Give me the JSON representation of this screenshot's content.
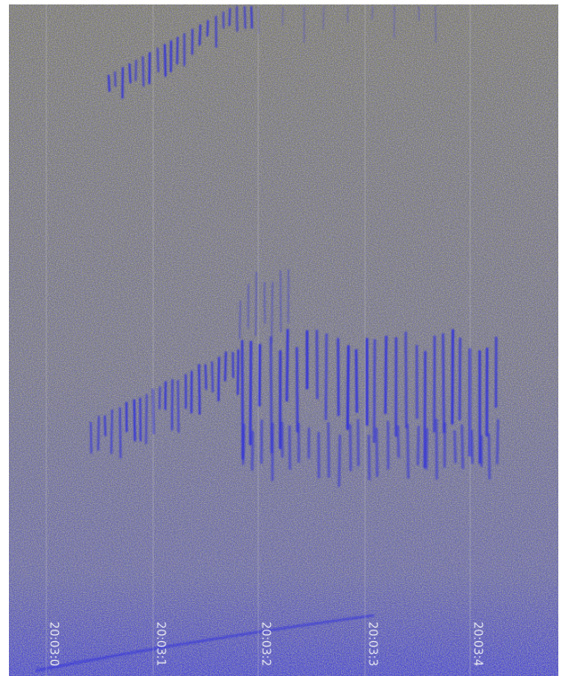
{
  "time_labels": [
    "20:03:0",
    "20:03:1",
    "20:03:2",
    "20:03:3",
    "20:03:4"
  ]
}
